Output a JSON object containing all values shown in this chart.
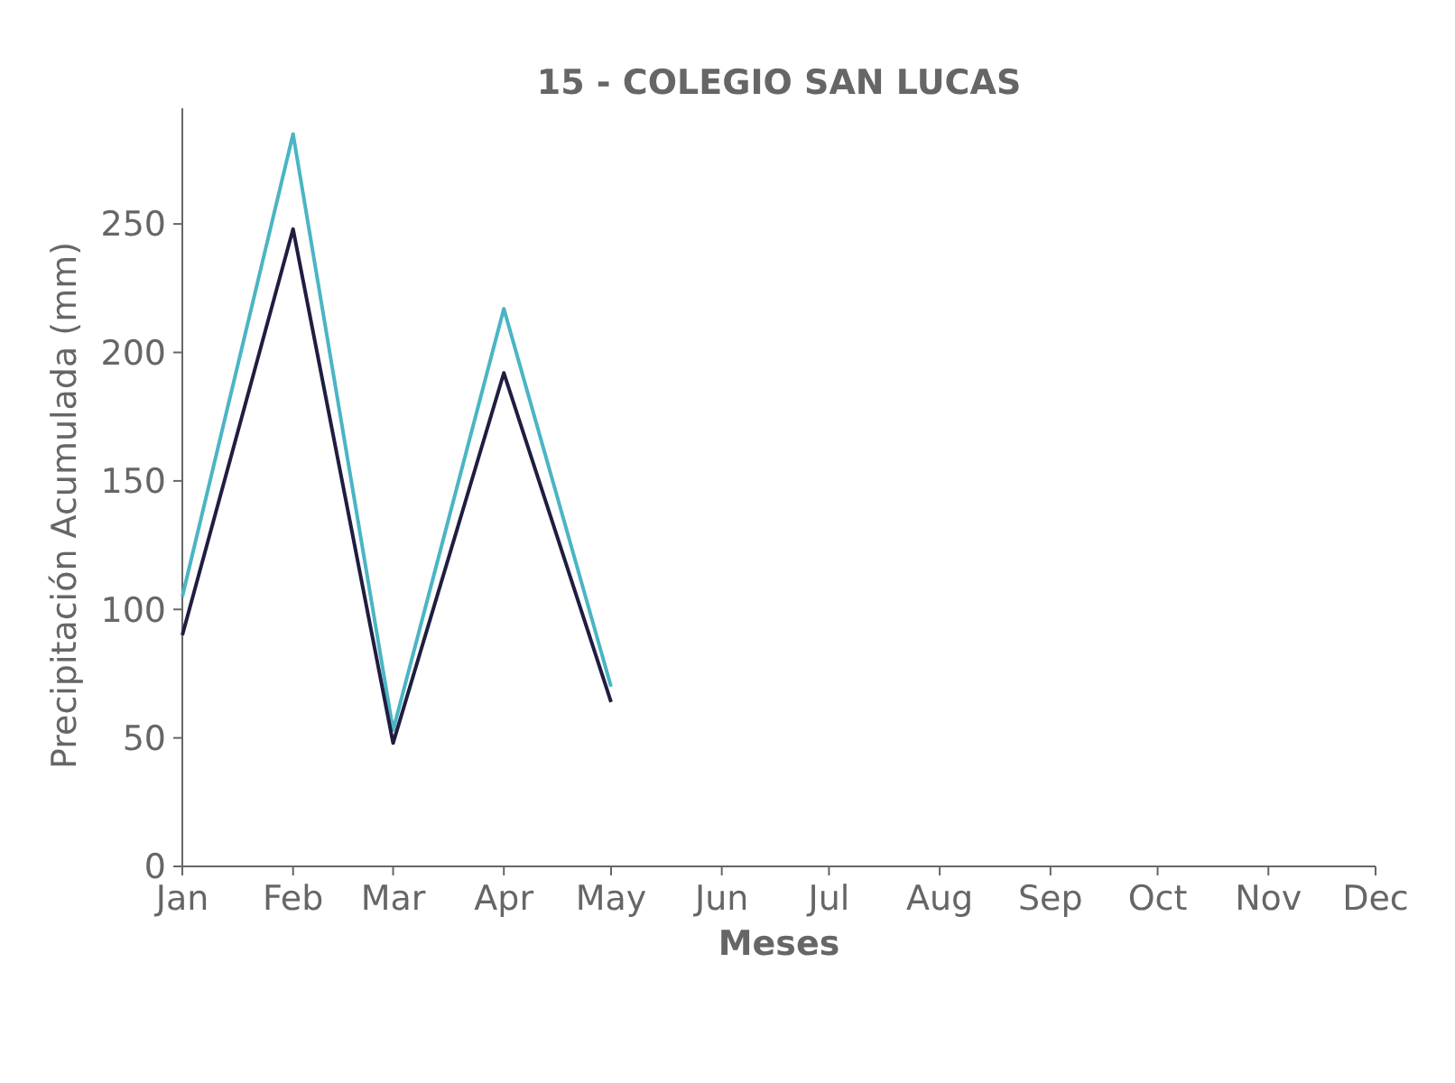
{
  "chart_data": {
    "type": "line",
    "title": "15 - COLEGIO SAN LUCAS",
    "xlabel": "Meses",
    "ylabel": "Precipitación Acumulada (mm)",
    "x": [
      "--01-01",
      "--02-01",
      "--03-01",
      "--04-01",
      "--05-01"
    ],
    "series": [
      {
        "color": "#4ab5c4",
        "values": [
          105,
          285,
          53,
          217,
          70
        ]
      },
      {
        "color": "#1f1d40",
        "values": [
          90,
          248,
          48,
          192,
          64
        ]
      }
    ],
    "xlim": [
      "--01-01",
      "--12-01"
    ],
    "xticks": [
      {
        "value": "--01-01",
        "label": "Jan"
      },
      {
        "value": "--02-01",
        "label": "Feb"
      },
      {
        "value": "--03-01",
        "label": "Mar"
      },
      {
        "value": "--04-01",
        "label": "Apr"
      },
      {
        "value": "--05-01",
        "label": "May"
      },
      {
        "value": "--06-01",
        "label": "Jun"
      },
      {
        "value": "--07-01",
        "label": "Jul"
      },
      {
        "value": "--08-01",
        "label": "Aug"
      },
      {
        "value": "--09-01",
        "label": "Sep"
      },
      {
        "value": "--10-01",
        "label": "Oct"
      },
      {
        "value": "--11-01",
        "label": "Nov"
      },
      {
        "value": "--12-01",
        "label": "Dec"
      }
    ],
    "ylim": [
      0,
      295
    ],
    "yticks": [
      0,
      50,
      100,
      150,
      200,
      250
    ],
    "grid": false
  }
}
